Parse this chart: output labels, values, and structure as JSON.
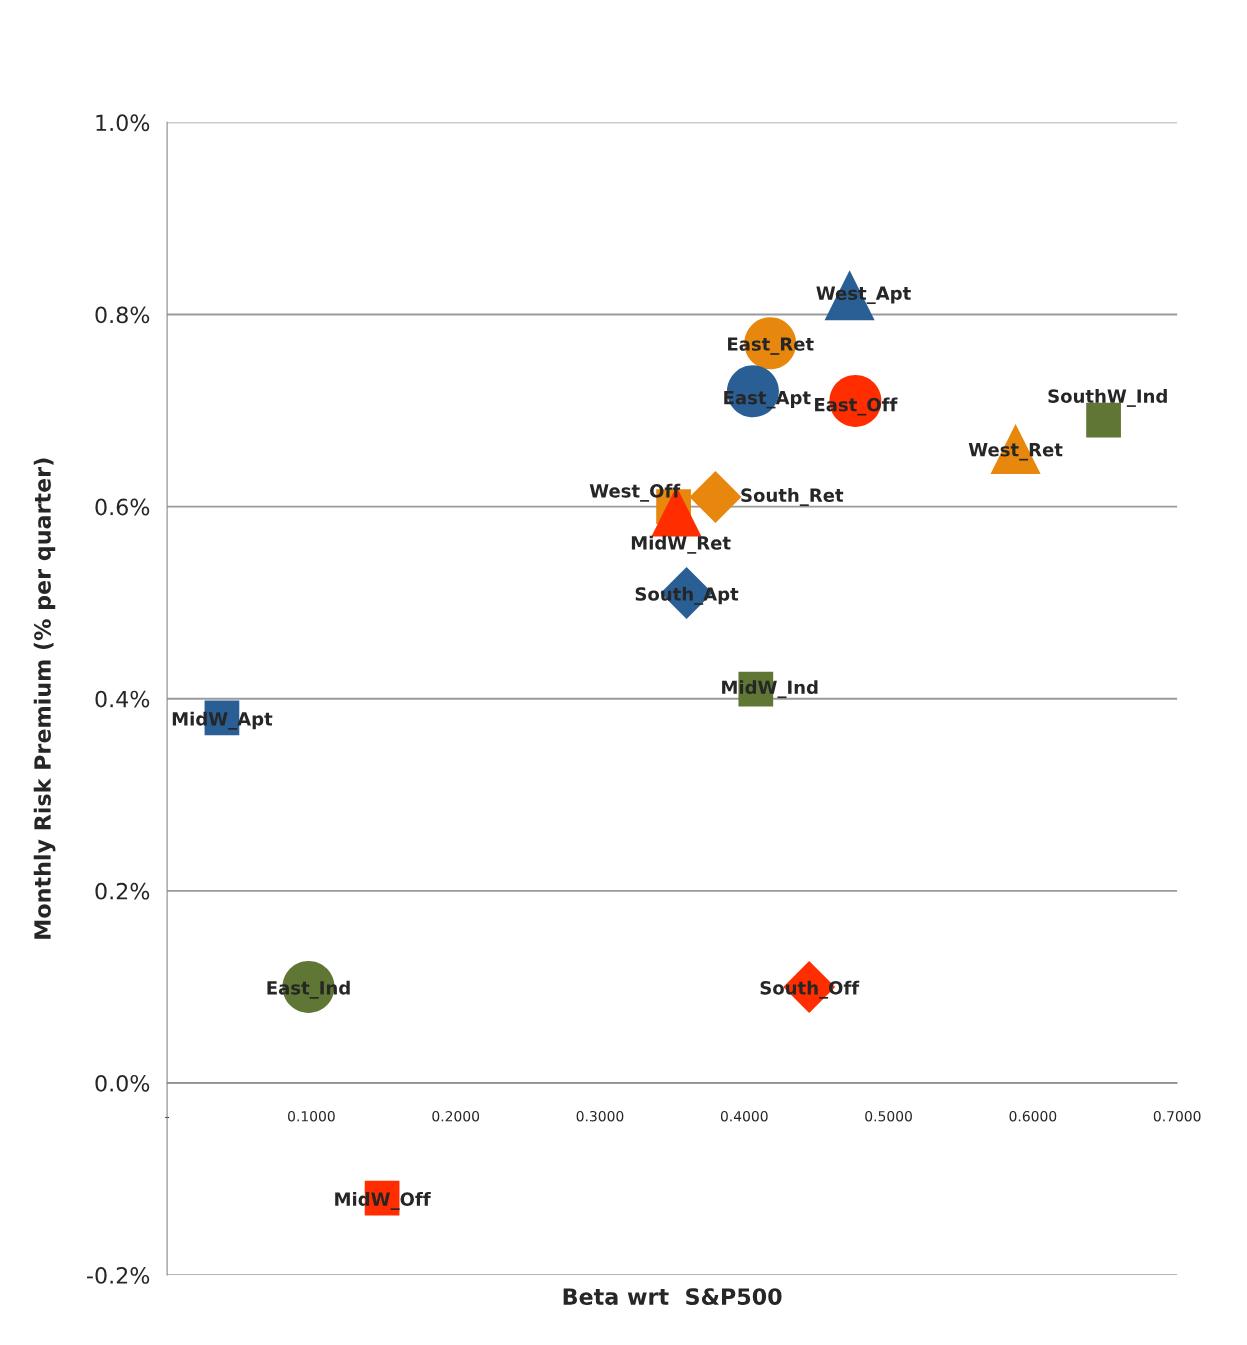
{
  "chart_data": {
    "type": "scatter",
    "xlabel": "Beta wrt  S&P500",
    "ylabel": "Monthly Risk Premium (% per quarter)",
    "xlim": [
      0,
      0.7
    ],
    "xticks": [
      {
        "value": 0,
        "label": "-"
      },
      {
        "value": 0.1,
        "label": "0.1000"
      },
      {
        "value": 0.2,
        "label": "0.2000"
      },
      {
        "value": 0.3,
        "label": "0.3000"
      },
      {
        "value": 0.4,
        "label": "0.4000"
      },
      {
        "value": 0.5,
        "label": "0.5000"
      },
      {
        "value": 0.6,
        "label": "0.6000"
      },
      {
        "value": 0.7,
        "label": "0.7000"
      }
    ],
    "ylim": [
      -0.2,
      1.0
    ],
    "yticks": [
      {
        "value": -0.2,
        "label": "-0.2%"
      },
      {
        "value": 0,
        "label": "0.0%"
      },
      {
        "value": 0.2,
        "label": "0.2%"
      },
      {
        "value": 0.4,
        "label": "0.4%"
      },
      {
        "value": 0.6,
        "label": "0.6%"
      },
      {
        "value": 0.8,
        "label": "0.8%"
      },
      {
        "value": 1.0,
        "label": "1.0%"
      }
    ],
    "grid": "y",
    "series": [
      {
        "name": "West_Apt",
        "color": "#2a5f96",
        "marker": "triangle",
        "x": [
          0.473
        ],
        "values": [
          0.82
        ]
      },
      {
        "name": "East_Ret",
        "color": "#e8870e",
        "marker": "circle",
        "x": [
          0.418
        ],
        "values": [
          0.77
        ]
      },
      {
        "name": "East_Apt",
        "color": "#2a5f96",
        "marker": "circle",
        "x": [
          0.406
        ],
        "values": [
          0.72
        ]
      },
      {
        "name": "East_Off",
        "color": "#ff2d00",
        "marker": "circle",
        "x": [
          0.477
        ],
        "values": [
          0.71
        ]
      },
      {
        "name": "SouthW_Ind",
        "color": "#5f7634",
        "marker": "square",
        "x": [
          0.649
        ],
        "values": [
          0.69
        ]
      },
      {
        "name": "West_Ret",
        "color": "#e8870e",
        "marker": "triangle",
        "x": [
          0.588
        ],
        "values": [
          0.66
        ]
      },
      {
        "name": "West_Off",
        "color": "#e8870e",
        "marker": "square",
        "x": [
          0.351
        ],
        "values": [
          0.6
        ]
      },
      {
        "name": "South_Ret",
        "color": "#e8870e",
        "marker": "diamond",
        "x": [
          0.38
        ],
        "values": [
          0.61
        ]
      },
      {
        "name": "MidW_Ret",
        "color": "#ff2d00",
        "marker": "triangle",
        "x": [
          0.353
        ],
        "values": [
          0.595
        ]
      },
      {
        "name": "South_Apt",
        "color": "#2a5f96",
        "marker": "diamond",
        "x": [
          0.36
        ],
        "values": [
          0.51
        ]
      },
      {
        "name": "MidW_Ind",
        "color": "#5f7634",
        "marker": "square",
        "x": [
          0.408
        ],
        "values": [
          0.41
        ]
      },
      {
        "name": "MidW_Apt",
        "color": "#2a5f96",
        "marker": "square",
        "x": [
          0.038
        ],
        "values": [
          0.38
        ]
      },
      {
        "name": "East_Ind",
        "color": "#5f7634",
        "marker": "circle",
        "x": [
          0.098
        ],
        "values": [
          0.1
        ]
      },
      {
        "name": "South_Off",
        "color": "#ff2d00",
        "marker": "diamond",
        "x": [
          0.445
        ],
        "values": [
          0.1
        ]
      },
      {
        "name": "MidW_Off",
        "color": "#ff2d00",
        "marker": "square",
        "x": [
          0.149
        ],
        "values": [
          -0.12
        ]
      }
    ]
  }
}
